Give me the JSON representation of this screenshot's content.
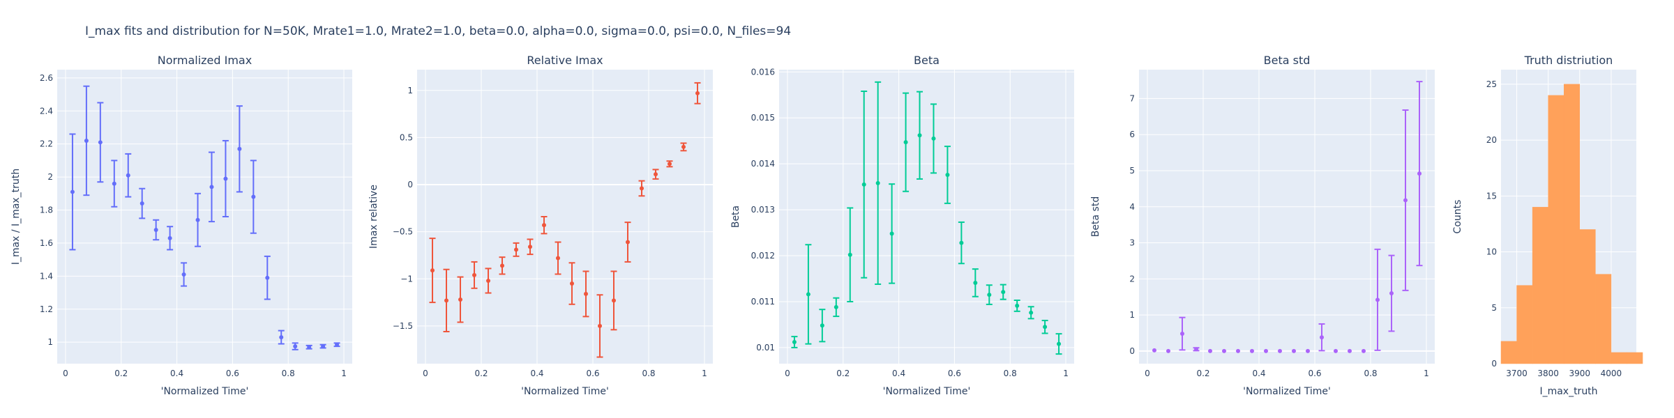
{
  "figure": {
    "title": "I_max fits and distribution for N=50K, Mrate1=1.0, Mrate2=1.0, beta=0.0, alpha=0.0, sigma=0.0,  psi=0.0, N_files=94",
    "plot_bg": "#e5ecf6",
    "grid_color": "#ffffff"
  },
  "chart_data": [
    {
      "type": "scatter",
      "title": "Normalized Imax",
      "xlabel": "'Normalized Time'",
      "ylabel": "I_max / I_max_truth",
      "color": "#636efa",
      "xlim": [
        -0.03,
        1.03
      ],
      "ylim": [
        0.87,
        2.65
      ],
      "xticks": [
        0,
        0.2,
        0.4,
        0.6,
        0.8,
        1
      ],
      "xtick_labels": [
        "0",
        "0.2",
        "0.4",
        "0.6",
        "0.8",
        "1"
      ],
      "yticks": [
        1,
        1.2,
        1.4,
        1.6,
        1.8,
        2,
        2.2,
        2.4,
        2.6
      ],
      "ytick_labels": [
        "1",
        "1.2",
        "1.4",
        "1.6",
        "1.8",
        "2",
        "2.2",
        "2.4",
        "2.6"
      ],
      "x": [
        0.025,
        0.075,
        0.125,
        0.175,
        0.225,
        0.275,
        0.325,
        0.375,
        0.425,
        0.475,
        0.525,
        0.575,
        0.625,
        0.675,
        0.725,
        0.775,
        0.825,
        0.875,
        0.925,
        0.975
      ],
      "y": [
        1.91,
        2.22,
        2.21,
        1.96,
        2.01,
        1.84,
        1.68,
        1.63,
        1.41,
        1.74,
        1.94,
        1.99,
        2.17,
        1.88,
        1.39,
        1.03,
        0.975,
        0.97,
        0.975,
        0.985
      ],
      "err": [
        0.35,
        0.33,
        0.24,
        0.14,
        0.13,
        0.09,
        0.06,
        0.07,
        0.07,
        0.16,
        0.21,
        0.23,
        0.26,
        0.22,
        0.13,
        0.04,
        0.02,
        0.01,
        0.01,
        0.01
      ]
    },
    {
      "type": "scatter",
      "title": "Relative Imax",
      "xlabel": "'Normalized Time'",
      "ylabel": "Imax relative",
      "color": "#ef553b",
      "xlim": [
        -0.03,
        1.03
      ],
      "ylim": [
        -1.9,
        1.22
      ],
      "xticks": [
        0,
        0.2,
        0.4,
        0.6,
        0.8,
        1
      ],
      "xtick_labels": [
        "0",
        "0.2",
        "0.4",
        "0.6",
        "0.8",
        "1"
      ],
      "yticks": [
        -1.5,
        -1,
        -0.5,
        0,
        0.5,
        1
      ],
      "ytick_labels": [
        "−1.5",
        "−1",
        "−0.5",
        "0",
        "0.5",
        "1"
      ],
      "x": [
        0.025,
        0.075,
        0.125,
        0.175,
        0.225,
        0.275,
        0.325,
        0.375,
        0.425,
        0.475,
        0.525,
        0.575,
        0.625,
        0.675,
        0.725,
        0.775,
        0.825,
        0.875,
        0.925,
        0.975
      ],
      "y": [
        -0.91,
        -1.23,
        -1.22,
        -0.96,
        -1.02,
        -0.86,
        -0.69,
        -0.66,
        -0.43,
        -0.78,
        -1.05,
        -1.16,
        -1.5,
        -1.23,
        -0.61,
        -0.04,
        0.11,
        0.22,
        0.4,
        0.97
      ],
      "err": [
        0.34,
        0.33,
        0.24,
        0.14,
        0.13,
        0.09,
        0.07,
        0.08,
        0.09,
        0.17,
        0.22,
        0.24,
        0.33,
        0.31,
        0.21,
        0.08,
        0.05,
        0.03,
        0.04,
        0.11
      ]
    },
    {
      "type": "scatter",
      "title": "Beta",
      "xlabel": "'Normalized Time'",
      "ylabel": "Beta",
      "color": "#00cc96",
      "xlim": [
        -0.03,
        1.03
      ],
      "ylim": [
        0.00965,
        0.01605
      ],
      "xticks": [
        0,
        0.2,
        0.4,
        0.6,
        0.8,
        1
      ],
      "xtick_labels": [
        "0",
        "0.2",
        "0.4",
        "0.6",
        "0.8",
        "1"
      ],
      "yticks": [
        0.01,
        0.011,
        0.012,
        0.013,
        0.014,
        0.015,
        0.016
      ],
      "ytick_labels": [
        "0.01",
        "0.011",
        "0.012",
        "0.013",
        "0.014",
        "0.015",
        "0.016"
      ],
      "x": [
        0.025,
        0.075,
        0.125,
        0.175,
        0.225,
        0.275,
        0.325,
        0.375,
        0.425,
        0.475,
        0.525,
        0.575,
        0.625,
        0.675,
        0.725,
        0.775,
        0.825,
        0.875,
        0.925,
        0.975
      ],
      "y": [
        0.01012,
        0.01116,
        0.01048,
        0.01088,
        0.01202,
        0.01355,
        0.01358,
        0.01248,
        0.01447,
        0.01462,
        0.01455,
        0.01376,
        0.01228,
        0.01141,
        0.01115,
        0.01121,
        0.01091,
        0.01076,
        0.01045,
        0.01008
      ],
      "err": [
        0.00012,
        0.00108,
        0.00035,
        0.0002,
        0.00102,
        0.00203,
        0.0022,
        0.00108,
        0.00107,
        0.00095,
        0.00075,
        0.00062,
        0.00045,
        0.0003,
        0.00021,
        0.00016,
        0.00012,
        0.00013,
        0.00014,
        0.00022
      ]
    },
    {
      "type": "scatter",
      "title": "Beta std",
      "xlabel": "'Normalized Time'",
      "ylabel": "Beta std",
      "color": "#ab63fa",
      "xlim": [
        -0.03,
        1.03
      ],
      "ylim": [
        -0.35,
        7.8
      ],
      "xticks": [
        0,
        0.2,
        0.4,
        0.6,
        0.8,
        1
      ],
      "xtick_labels": [
        "0",
        "0.2",
        "0.4",
        "0.6",
        "0.8",
        "1"
      ],
      "yticks": [
        0,
        1,
        2,
        3,
        4,
        5,
        6,
        7
      ],
      "ytick_labels": [
        "0",
        "1",
        "2",
        "3",
        "4",
        "5",
        "6",
        "7"
      ],
      "x": [
        0.025,
        0.075,
        0.125,
        0.175,
        0.225,
        0.275,
        0.325,
        0.375,
        0.425,
        0.475,
        0.525,
        0.575,
        0.625,
        0.675,
        0.725,
        0.775,
        0.825,
        0.875,
        0.925,
        0.975
      ],
      "y": [
        0.02,
        0.0,
        0.48,
        0.05,
        0.0,
        0.0,
        0.0,
        0.0,
        0.0,
        0.0,
        0.0,
        0.0,
        0.38,
        0.0,
        0.0,
        0.0,
        1.42,
        1.6,
        4.18,
        4.92
      ],
      "err": [
        0.0,
        0.0,
        0.45,
        0.04,
        0.0,
        0.0,
        0.0,
        0.0,
        0.0,
        0.0,
        0.0,
        0.0,
        0.37,
        0.0,
        0.0,
        0.0,
        1.4,
        1.05,
        2.5,
        2.55
      ]
    },
    {
      "type": "histogram",
      "title": "Truth distriution",
      "xlabel": "I_max_truth",
      "ylabel": "Counts",
      "color": "#ffa15a",
      "xlim": [
        3650,
        4080
      ],
      "ylim": [
        0,
        26.3
      ],
      "xticks": [
        3700,
        3800,
        3900,
        4000
      ],
      "xtick_labels": [
        "3700",
        "3800",
        "3900",
        "4000"
      ],
      "yticks": [
        0,
        5,
        10,
        15,
        20,
        25
      ],
      "ytick_labels": [
        "0",
        "5",
        "10",
        "15",
        "20",
        "25"
      ],
      "bin_width": 50,
      "bin_starts": [
        3650,
        3700,
        3750,
        3800,
        3850,
        3900,
        3950,
        4000,
        4050
      ],
      "counts": [
        2,
        7,
        14,
        24,
        25,
        12,
        8,
        1,
        1
      ]
    }
  ]
}
